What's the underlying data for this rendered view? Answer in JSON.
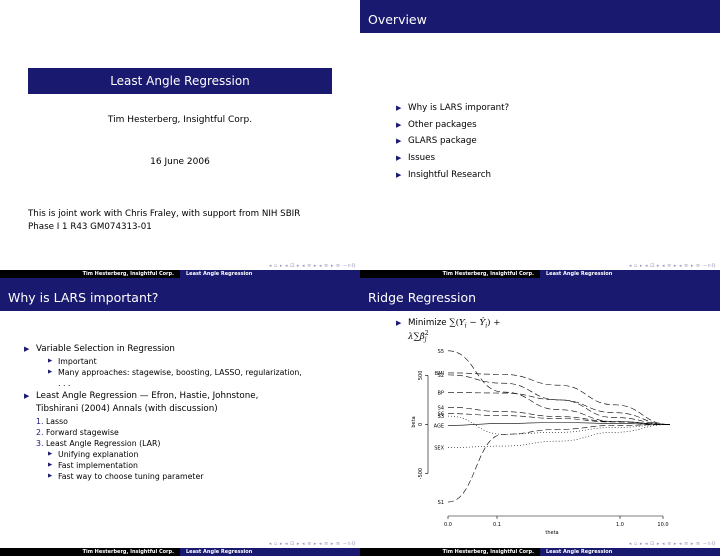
{
  "footer": {
    "author": "Tim Hesterberg, Insightful Corp.",
    "title": "Least Angle Regression"
  },
  "nav_symbols": "◂ ▫ ▸ ◂ ⊡ ▸ ◂ ≡ ▸ ◂ ≡ ▸ ≡ ∽∩ℚ",
  "slide1": {
    "title": "Least Angle Regression",
    "author": "Tim Hesterberg, Insightful Corp.",
    "date": "16 June 2006",
    "note_line1": "This is joint work with Chris Fraley, with support from NIH SBIR",
    "note_line2": "Phase I 1 R43 GM074313-01"
  },
  "slide2": {
    "title": "Overview",
    "items": [
      "Why is LARS imporant?",
      "Other packages",
      "GLARS package",
      "Issues",
      "Insightful Research"
    ]
  },
  "slide3": {
    "title": "Why is LARS important?",
    "item1": "Variable Selection in Regression",
    "item1_sub": [
      "Important",
      "Many approaches: stagewise, boosting, LASSO, regularization,",
      ". . ."
    ],
    "item2_line1": "Least Angle Regression — Efron, Hastie, Johnstone,",
    "item2_line2": "Tibshirani (2004) Annals (with discussion)",
    "enum_numbers": [
      "1.",
      "2.",
      "3."
    ],
    "enum": [
      "Lasso",
      "Forward stagewise",
      "Least Angle Regression (LAR)"
    ],
    "enum3_sub": [
      "Unifying explanation",
      "Fast implementation",
      "Fast way to choose tuning parameter"
    ]
  },
  "slide4": {
    "title": "Ridge Regression",
    "bullet_prefix": "Minimize"
  },
  "chart_data": {
    "type": "line",
    "xlabel": "theta",
    "ylabel": "beta",
    "x_ticks": [
      "0.0",
      "0.1",
      "1.0",
      "10.0"
    ],
    "y_ticks": [
      "500",
      "0",
      "-500"
    ],
    "ylim": [
      -800,
      850
    ],
    "series": [
      {
        "name": "S5",
        "values": [
          750,
          330,
          150,
          30,
          0
        ]
      },
      {
        "name": "BMI",
        "values": [
          525,
          510,
          400,
          200,
          0
        ]
      },
      {
        "name": "S2",
        "values": [
          505,
          420,
          250,
          70,
          0
        ]
      },
      {
        "name": "BP",
        "values": [
          325,
          320,
          250,
          120,
          0
        ]
      },
      {
        "name": "S4",
        "values": [
          175,
          130,
          80,
          30,
          0
        ]
      },
      {
        "name": "S6",
        "values": [
          110,
          90,
          60,
          25,
          0
        ]
      },
      {
        "name": "S3",
        "values": [
          85,
          -100,
          -80,
          -30,
          0
        ]
      },
      {
        "name": "AGE",
        "values": [
          -10,
          10,
          20,
          10,
          0
        ]
      },
      {
        "name": "SEX",
        "values": [
          -235,
          -220,
          -170,
          -80,
          0
        ]
      },
      {
        "name": "S1",
        "values": [
          -790,
          -100,
          -50,
          -10,
          0
        ]
      }
    ]
  }
}
